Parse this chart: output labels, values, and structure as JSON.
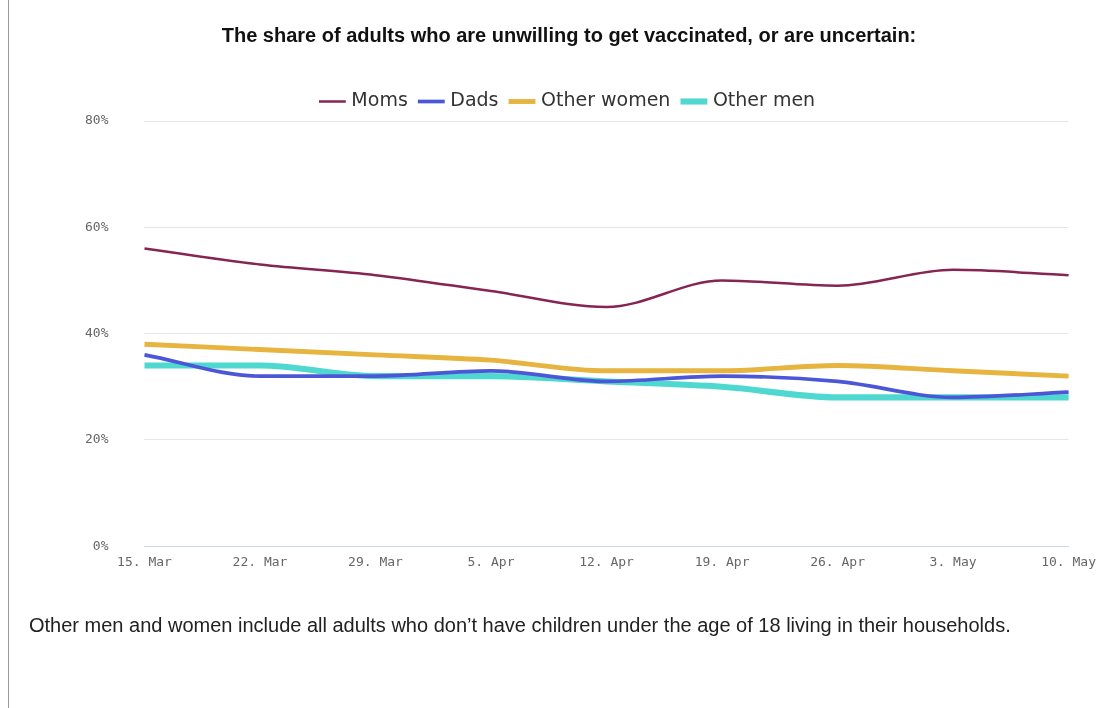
{
  "chart_data": {
    "type": "line",
    "title": "The share of adults who are unwilling to get vaccinated, or are uncertain:",
    "categories": [
      "15. Mar",
      "22. Mar",
      "29. Mar",
      "5. Apr",
      "12. Apr",
      "19. Apr",
      "26. Apr",
      "3. May",
      "10. May"
    ],
    "series": [
      {
        "name": "Moms",
        "color": "#862452",
        "values": [
          56,
          53,
          51,
          48,
          45,
          50,
          49,
          52,
          51
        ]
      },
      {
        "name": "Dads",
        "color": "#4b57d6",
        "values": [
          36,
          32,
          32,
          33,
          31,
          32,
          31,
          28,
          29
        ]
      },
      {
        "name": "Other women",
        "color": "#e6b43f",
        "values": [
          38,
          37,
          36,
          35,
          33,
          33,
          34,
          33,
          32
        ]
      },
      {
        "name": "Other men",
        "color": "#4fd8d0",
        "values": [
          34,
          34,
          32,
          32,
          31,
          30,
          28,
          28,
          28
        ]
      }
    ],
    "ylim": [
      0,
      80
    ],
    "yticks": [
      {
        "value": 0,
        "label": "0%"
      },
      {
        "value": 20,
        "label": "20%"
      },
      {
        "value": 40,
        "label": "40%"
      },
      {
        "value": 60,
        "label": "60%"
      },
      {
        "value": 80,
        "label": "80%"
      }
    ],
    "grid": "y",
    "legend": "top",
    "marker": "none",
    "annotations": [
      "Other men and women include all adults who don’t have children under the age of 18 living in their households."
    ]
  }
}
